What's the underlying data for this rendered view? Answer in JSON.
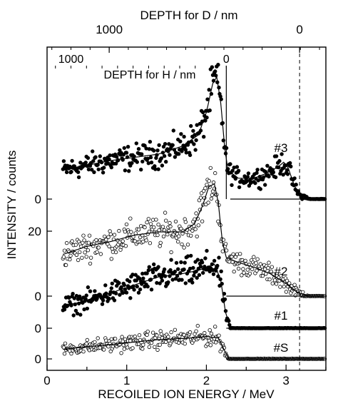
{
  "chart_data": {
    "type": "scatter",
    "title": "",
    "xlabel": "RECOILED ION ENERGY / MeV",
    "ylabel": "INTENSITY / counts",
    "xlim": [
      0,
      3.5
    ],
    "xticks": [
      0,
      1,
      2,
      3
    ],
    "top_axis": {
      "label": "DEPTH for D / nm",
      "ticks": [
        {
          "label": "1000",
          "at_energy": 0.78
        },
        {
          "label": "0",
          "at_energy": 3.17
        }
      ]
    },
    "inner_axis": {
      "label": "DEPTH for H / nm",
      "ticks": [
        {
          "label": "1000",
          "at_energy": 0.3
        },
        {
          "label": "0",
          "at_energy": 2.25
        }
      ]
    },
    "vertical_marker": {
      "at_energy": 2.25,
      "style": "solid"
    },
    "dashed_marker": {
      "at_energy": 3.17,
      "style": "dashed"
    },
    "y_scale_counts_per_unit_tick": 20,
    "y_tick_labels": [
      {
        "label": "0",
        "offset": "#3"
      },
      {
        "label": "20",
        "offset": "#3",
        "value": 20
      },
      {
        "label": "0",
        "offset": "#2"
      },
      {
        "label": "0",
        "offset": "#1"
      },
      {
        "label": "0",
        "offset": "#S"
      }
    ],
    "series": [
      {
        "name": "#3",
        "marker": "filled",
        "zero_line_from": 2.3,
        "profile": [
          [
            0.2,
            18
          ],
          [
            0.5,
            21
          ],
          [
            0.8,
            24
          ],
          [
            1.1,
            26
          ],
          [
            1.4,
            28
          ],
          [
            1.7,
            33
          ],
          [
            1.9,
            40
          ],
          [
            2.0,
            54
          ],
          [
            2.08,
            72
          ],
          [
            2.13,
            76
          ],
          [
            2.18,
            60
          ],
          [
            2.23,
            32
          ],
          [
            2.27,
            18
          ],
          [
            2.4,
            13
          ],
          [
            2.6,
            13
          ],
          [
            2.75,
            16
          ],
          [
            2.9,
            20
          ],
          [
            2.97,
            23
          ],
          [
            3.03,
            19
          ],
          [
            3.1,
            9
          ],
          [
            3.17,
            2
          ],
          [
            3.3,
            0
          ],
          [
            3.5,
            0
          ]
        ]
      },
      {
        "name": "#2",
        "marker": "open",
        "zero_line_from": 2.25,
        "profile": [
          [
            0.2,
            26
          ],
          [
            0.5,
            31
          ],
          [
            0.8,
            34
          ],
          [
            1.1,
            38
          ],
          [
            1.4,
            40
          ],
          [
            1.7,
            40
          ],
          [
            1.85,
            45
          ],
          [
            1.95,
            56
          ],
          [
            2.03,
            68
          ],
          [
            2.1,
            70
          ],
          [
            2.15,
            58
          ],
          [
            2.2,
            34
          ],
          [
            2.25,
            24
          ],
          [
            2.4,
            21
          ],
          [
            2.6,
            18
          ],
          [
            2.8,
            14
          ],
          [
            3.0,
            8
          ],
          [
            3.15,
            2
          ],
          [
            3.3,
            0
          ],
          [
            3.5,
            0
          ]
        ]
      },
      {
        "name": "#1",
        "marker": "filled",
        "zero_line_from": 2.25,
        "profile": [
          [
            0.2,
            14
          ],
          [
            0.5,
            17
          ],
          [
            0.8,
            22
          ],
          [
            1.1,
            27
          ],
          [
            1.4,
            32
          ],
          [
            1.7,
            34
          ],
          [
            1.9,
            36
          ],
          [
            2.1,
            40
          ],
          [
            2.18,
            30
          ],
          [
            2.24,
            10
          ],
          [
            2.3,
            0
          ],
          [
            3.5,
            0
          ]
        ]
      },
      {
        "name": "#S",
        "marker": "open",
        "zero_line_from": 2.25,
        "profile": [
          [
            0.2,
            6
          ],
          [
            0.6,
            8
          ],
          [
            1.0,
            10
          ],
          [
            1.4,
            12
          ],
          [
            1.8,
            13
          ],
          [
            2.0,
            14
          ],
          [
            2.15,
            13
          ],
          [
            2.22,
            6
          ],
          [
            2.28,
            0
          ],
          [
            3.5,
            0
          ]
        ]
      }
    ]
  }
}
